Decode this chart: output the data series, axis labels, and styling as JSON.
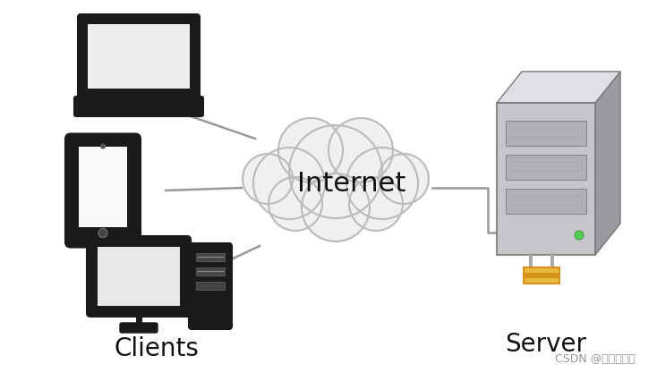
{
  "background_color": "#ffffff",
  "internet_label": "Internet",
  "clients_label": "Clients",
  "server_label": "Server",
  "watermark": "CSDN @四问四不知",
  "line_color": "#999999",
  "line_width": 1.8,
  "internet_fontsize": 22,
  "label_fontsize": 20,
  "watermark_fontsize": 9,
  "cloud_fill": "#f0f0f0",
  "cloud_edge": "#bbbbbb",
  "dark": "#1a1a1a",
  "light_gray": "#eeeeee",
  "mid_gray": "#cccccc",
  "server_front": "#c5c5ca",
  "server_top": "#e0e0e4",
  "server_side": "#9a9a9f",
  "server_slot": "#b0b0b8",
  "server_slot_dark": "#888890",
  "gold": "#d4921a",
  "gold_light": "#e8b840",
  "green_led": "#55cc55"
}
